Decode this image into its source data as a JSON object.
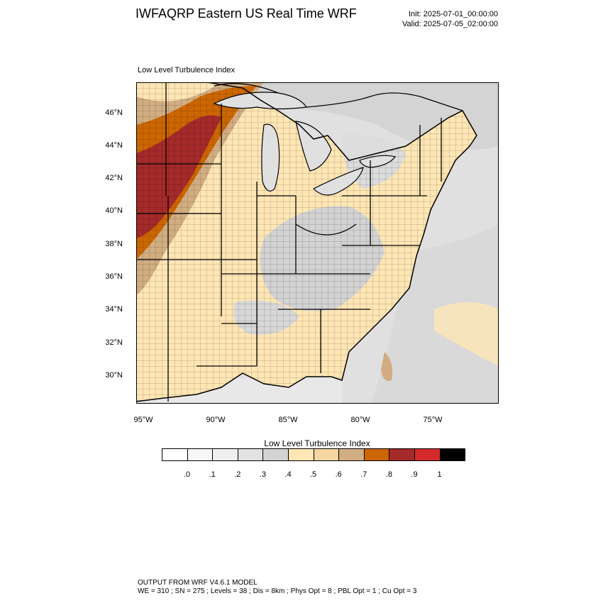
{
  "header": {
    "title": "IWFAQRP Eastern US Real Time WRF",
    "init": "Init: 2025-07-01_00:00:00",
    "valid": "Valid: 2025-07-05_02:00:00"
  },
  "map": {
    "subtitle": "Low Level Turbulence Index",
    "lat_labels": [
      "46°N",
      "44°N",
      "42°N",
      "40°N",
      "38°N",
      "36°N",
      "34°N",
      "32°N",
      "30°N"
    ],
    "lon_labels": [
      "95°W",
      "90°W",
      "85°W",
      "80°W",
      "75°W"
    ]
  },
  "colorbar": {
    "title": "Low Level Turbulence Index",
    "colors": [
      "#ffffff",
      "#f7f7f7",
      "#efefef",
      "#e2e2e2",
      "#d3d3d3",
      "#ffe6b4",
      "#f6d5a0",
      "#d2ad82",
      "#cc6600",
      "#a52a2a",
      "#d42a2a",
      "#000000"
    ],
    "labels": [
      ".0",
      ".1",
      ".2",
      ".3",
      ".4",
      ".5",
      ".6",
      ".7",
      ".8",
      ".9",
      "1"
    ]
  },
  "footer": {
    "line1": "OUTPUT FROM WRF V4.6.1 MODEL",
    "line2": "WE = 310 ; SN = 275 ; Levels = 38 ; Dis = 8km ; Phys Opt = 8 ; PBL Opt = 1 ; Cu Opt = 3"
  }
}
